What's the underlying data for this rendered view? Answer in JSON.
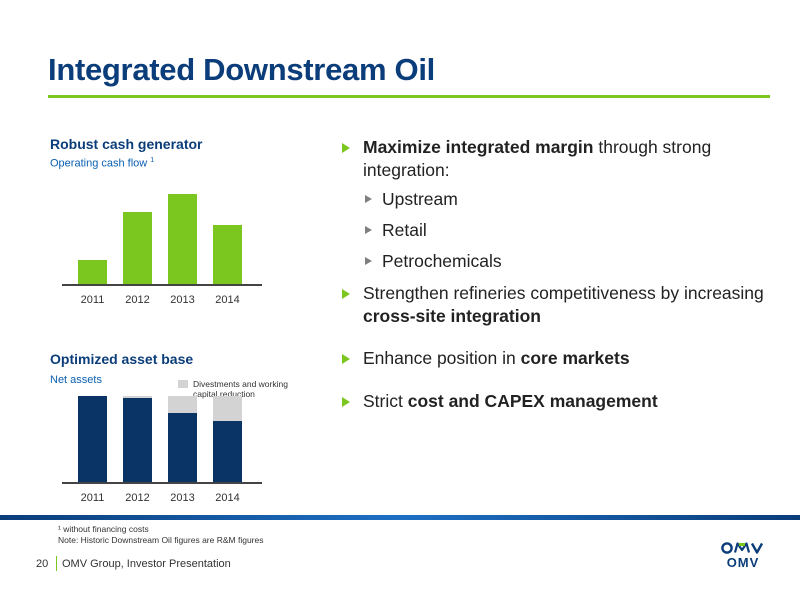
{
  "title": "Integrated Downstream Oil",
  "colors": {
    "title": "#0a3d7a",
    "accent_green": "#7cc620",
    "navy_bar": "#0a3366",
    "grey_bar": "#d3d3d3"
  },
  "chart_data": [
    {
      "type": "bar",
      "title": "Robust cash generator",
      "subtitle": "Operating cash flow",
      "footnote_marker": "1",
      "categories": [
        "2011",
        "2012",
        "2013",
        "2014"
      ],
      "values": [
        2.0,
        6.0,
        7.5,
        4.9
      ],
      "ylim": [
        0,
        8
      ],
      "grid": false
    },
    {
      "type": "bar",
      "title": "Optimized asset base",
      "subtitle": "Net assets",
      "categories": [
        "2011",
        "2012",
        "2013",
        "2014"
      ],
      "series": [
        {
          "values": [
            7.5,
            7.3,
            6.0,
            5.3
          ]
        },
        {
          "name": "Divestments and working capital reduction",
          "values": [
            0,
            0.2,
            1.5,
            2.2
          ]
        }
      ],
      "ylim": [
        0,
        8
      ],
      "grid": false,
      "legend": "top-right"
    }
  ],
  "bullets": [
    {
      "parts": [
        {
          "text": "Maximize integrated margin",
          "bold": true
        },
        {
          "text": " through strong integration:",
          "bold": false
        }
      ]
    },
    {
      "parts": [
        {
          "text": "Strengthen refineries competitiveness by increasing ",
          "bold": false
        },
        {
          "text": "cross-site integration",
          "bold": true
        }
      ]
    },
    {
      "parts": [
        {
          "text": "Enhance position in ",
          "bold": false
        },
        {
          "text": "core markets",
          "bold": true
        }
      ]
    },
    {
      "parts": [
        {
          "text": "Strict ",
          "bold": false
        },
        {
          "text": "cost and CAPEX management",
          "bold": true
        }
      ]
    }
  ],
  "subbullets": [
    "Upstream",
    "Retail",
    "Petrochemicals"
  ],
  "footnotes": {
    "line1": "¹ without financing costs",
    "line2": "Note: Historic Downstream Oil figures are R&M figures"
  },
  "footer": {
    "page_number": "20",
    "text": "OMV Group, Investor Presentation",
    "logo_text": "OMV"
  }
}
